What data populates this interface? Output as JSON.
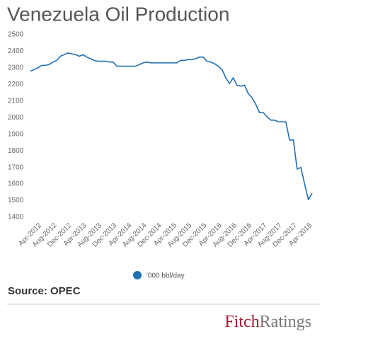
{
  "chart_data": {
    "type": "line",
    "title": "Venezuela Oil Production",
    "categories": [
      null,
      null,
      null,
      "Apr-2012",
      null,
      null,
      null,
      "Aug-2012",
      null,
      null,
      null,
      "Dec-2012",
      null,
      null,
      null,
      "Apr-2013",
      null,
      null,
      null,
      "Aug-2013",
      null,
      null,
      null,
      "Dec-2013",
      null,
      null,
      null,
      "Apr-2014",
      null,
      null,
      null,
      "Aug-2014",
      null,
      null,
      null,
      "Dec-2014",
      null,
      null,
      null,
      "Apr-2015",
      null,
      null,
      null,
      "Aug-2015",
      null,
      null,
      null,
      "Dec-2015",
      null,
      null,
      null,
      "Apr-2016",
      null,
      null,
      null,
      "Aug-2016",
      null,
      null,
      null,
      "Dec-2016",
      null,
      null,
      null,
      "Apr-2017",
      null,
      null,
      null,
      "Aug-2017",
      null,
      null,
      null,
      "Dec-2017",
      null,
      null,
      null,
      "Apr-2018"
    ],
    "series": [
      {
        "name": "'000 bbl/day",
        "color": "#1f6fb5",
        "values": [
          2280,
          2290,
          2300,
          2315,
          2315,
          2320,
          2335,
          2345,
          2370,
          2380,
          2390,
          2385,
          2380,
          2370,
          2380,
          2365,
          2355,
          2345,
          2340,
          2340,
          2340,
          2335,
          2335,
          2310,
          2310,
          2310,
          2310,
          2310,
          2310,
          2320,
          2330,
          2335,
          2330,
          2330,
          2330,
          2330,
          2330,
          2330,
          2330,
          2330,
          2345,
          2345,
          2350,
          2350,
          2355,
          2365,
          2365,
          2340,
          2335,
          2325,
          2310,
          2290,
          2240,
          2205,
          2240,
          2195,
          2190,
          2195,
          2145,
          2120,
          2080,
          2030,
          2030,
          2005,
          1985,
          1985,
          1975,
          1975,
          1975,
          1865,
          1865,
          1690,
          1700,
          1600,
          1505,
          1545
        ]
      }
    ],
    "ylim": [
      1400,
      2500
    ],
    "yticks": [
      1400,
      1500,
      1600,
      1700,
      1800,
      1900,
      2000,
      2100,
      2200,
      2300,
      2400,
      2500
    ],
    "grid": false,
    "legend": "bottom"
  },
  "footer": {
    "source": "Source: OPEC",
    "logo": [
      "Fitch",
      "Ratings"
    ]
  }
}
